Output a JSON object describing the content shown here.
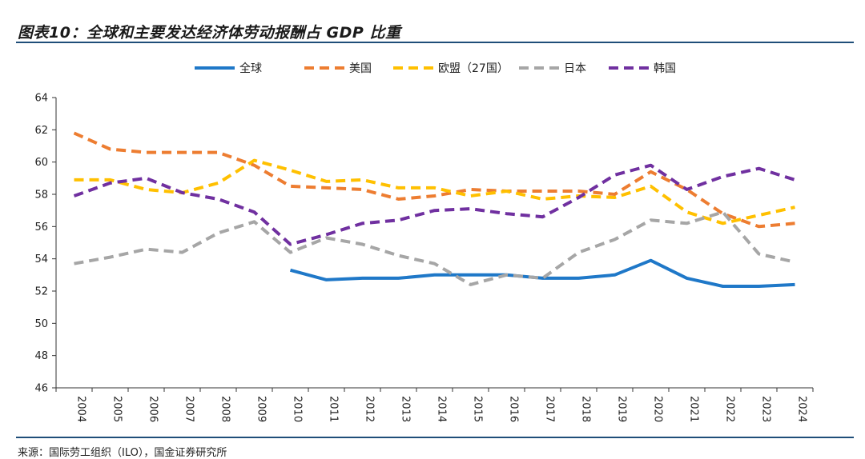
{
  "title": "图表10：全球和主要发达经济体劳动报酬占 GDP 比重",
  "source": "来源：国际劳工组织（ILO），国金证券研究所",
  "chart_data": {
    "type": "line",
    "title": "图表10：全球和主要发达经济体劳动报酬占 GDP 比重",
    "xlabel": "",
    "ylabel": "",
    "ylim": [
      46,
      64
    ],
    "yticks": [
      "46",
      "48",
      "50",
      "52",
      "54",
      "56",
      "58",
      "60",
      "62",
      "64"
    ],
    "legend_position": "top",
    "grid": false,
    "categories": [
      "2004",
      "2005",
      "2006",
      "2007",
      "2008",
      "2009",
      "2010",
      "2011",
      "2012",
      "2013",
      "2014",
      "2015",
      "2016",
      "2017",
      "2018",
      "2019",
      "2020",
      "2021",
      "2022",
      "2023",
      "2024"
    ],
    "series": [
      {
        "name": "全球",
        "color": "#1f78c8",
        "dash": "solid",
        "values": [
          null,
          null,
          null,
          null,
          null,
          null,
          53.3,
          52.7,
          52.8,
          52.8,
          53.0,
          53.0,
          53.0,
          52.8,
          52.8,
          53.0,
          53.9,
          52.8,
          52.3,
          52.3,
          52.4
        ]
      },
      {
        "name": "美国",
        "color": "#ed7d31",
        "dash": "dashed",
        "values": [
          61.8,
          60.8,
          60.6,
          60.6,
          60.6,
          59.8,
          58.5,
          58.4,
          58.3,
          57.7,
          57.9,
          58.3,
          58.2,
          58.2,
          58.2,
          58.0,
          59.4,
          58.3,
          56.8,
          56.0,
          56.2
        ]
      },
      {
        "name": "欧盟（27国）",
        "color": "#ffc000",
        "dash": "dashed",
        "values": [
          58.9,
          58.9,
          58.3,
          58.1,
          58.7,
          60.1,
          59.5,
          58.8,
          58.9,
          58.4,
          58.4,
          57.9,
          58.2,
          57.7,
          57.9,
          57.8,
          58.5,
          56.9,
          56.2,
          56.7,
          57.2
        ]
      },
      {
        "name": "日本",
        "color": "#a6a6a6",
        "dash": "dashed",
        "values": [
          53.7,
          54.1,
          54.6,
          54.4,
          55.6,
          56.3,
          54.4,
          55.3,
          54.9,
          54.2,
          53.7,
          52.4,
          53.0,
          52.8,
          54.4,
          55.2,
          56.4,
          56.2,
          56.9,
          54.3,
          53.8
        ]
      },
      {
        "name": "韩国",
        "color": "#7030a0",
        "dash": "dashed",
        "values": [
          57.9,
          58.7,
          59.0,
          58.1,
          57.7,
          56.9,
          54.9,
          55.5,
          56.2,
          56.4,
          57.0,
          57.1,
          56.8,
          56.6,
          57.8,
          59.2,
          59.8,
          58.3,
          59.1,
          59.6,
          58.9
        ]
      }
    ]
  }
}
